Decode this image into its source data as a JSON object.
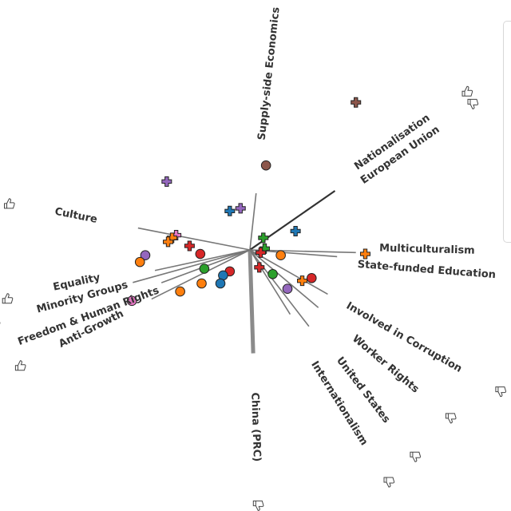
{
  "chart_data": {
    "type": "scatter",
    "title": "",
    "xlabel": "",
    "ylabel": "",
    "colors": {
      "red": "#d62728",
      "blue": "#1f77b4",
      "green": "#2ca02c",
      "orange": "#ff7f0e",
      "purple": "#9467bd",
      "brown": "#8c564b",
      "pink": "#e377c2",
      "axis_line": "#777777",
      "axis_strong": "#333333",
      "text": "#333333"
    },
    "axes": [
      {
        "label": "Supply-side Economics",
        "icon": "thumbs-down-icon",
        "direction": [
          0.07,
          -0.64
        ],
        "length": 0.66,
        "emphasis": "normal"
      },
      {
        "label": "Nationalisation",
        "icon": "thumbs-up-icon",
        "direction": [
          0.72,
          -0.5
        ],
        "length": 0.88,
        "emphasis": "strong"
      },
      {
        "label": "European Union",
        "icon": "thumbs-down-icon",
        "direction": [
          0.72,
          -0.5
        ],
        "length": 0.88,
        "emphasis": "strong"
      },
      {
        "label": "Multiculturalism",
        "icon": "thumbs-down-icon",
        "direction": [
          0.79,
          0.02
        ],
        "length": 1.0,
        "emphasis": "normal"
      },
      {
        "label": "State-funded Education",
        "icon": "thumbs-down-icon",
        "direction": [
          0.65,
          0.05
        ],
        "length": 1.0,
        "emphasis": "normal"
      },
      {
        "label": "Involved in Corruption",
        "icon": "thumbs-down-icon",
        "direction": [
          0.58,
          0.33
        ],
        "length": 1.0,
        "emphasis": "normal"
      },
      {
        "label": "Worker Rights",
        "icon": "thumbs-down-icon",
        "direction": [
          0.51,
          0.43
        ],
        "length": 1.0,
        "emphasis": "normal"
      },
      {
        "label": "United States",
        "icon": "thumbs-down-icon",
        "direction": [
          0.44,
          0.57
        ],
        "length": 1.0,
        "emphasis": "normal"
      },
      {
        "label": "Internationalism",
        "icon": "thumbs-down-icon",
        "direction": [
          0.3,
          0.48
        ],
        "length": 1.0,
        "emphasis": "normal"
      },
      {
        "label": "China (PRC)",
        "icon": "thumbs-down-icon",
        "direction": [
          0.03,
          0.94
        ],
        "length": 0.82,
        "emphasis": "heavy"
      },
      {
        "label": "Anti-Growth",
        "icon": "thumbs-up-icon",
        "direction": [
          -0.94,
          0.47
        ],
        "length": 0.78,
        "emphasis": "normal"
      },
      {
        "label": "Freedom & Human Rights",
        "icon": "thumbs-up-icon",
        "direction": [
          -0.97,
          0.36
        ],
        "length": 0.68,
        "emphasis": "normal"
      },
      {
        "label": "Minority Groups",
        "icon": "thumbs-up-icon",
        "direction": [
          -0.97,
          0.27
        ],
        "length": 0.9,
        "emphasis": "normal"
      },
      {
        "label": "Equality",
        "icon": "thumbs-up-icon",
        "direction": [
          -0.97,
          0.21
        ],
        "length": 0.73,
        "emphasis": "normal"
      },
      {
        "label": "Culture",
        "icon": "thumbs-up-icon",
        "direction": [
          -0.97,
          -0.19
        ],
        "length": 0.86,
        "emphasis": "normal"
      }
    ],
    "points": [
      {
        "x": 0.79,
        "y": -1.1,
        "color": "brown",
        "shape": "plus"
      },
      {
        "x": 0.12,
        "y": -0.63,
        "color": "brown",
        "shape": "circle"
      },
      {
        "x": -0.62,
        "y": -0.51,
        "color": "purple",
        "shape": "plus"
      },
      {
        "x": -0.15,
        "y": -0.29,
        "color": "blue",
        "shape": "plus"
      },
      {
        "x": -0.07,
        "y": -0.31,
        "color": "purple",
        "shape": "plus"
      },
      {
        "x": 0.34,
        "y": -0.14,
        "color": "blue",
        "shape": "plus"
      },
      {
        "x": -0.55,
        "y": -0.11,
        "color": "pink",
        "shape": "plus"
      },
      {
        "x": -0.58,
        "y": -0.09,
        "color": "orange",
        "shape": "plus"
      },
      {
        "x": -0.61,
        "y": -0.06,
        "color": "orange",
        "shape": "plus"
      },
      {
        "x": -0.45,
        "y": -0.03,
        "color": "red",
        "shape": "plus"
      },
      {
        "x": -0.37,
        "y": 0.03,
        "color": "red",
        "shape": "circle"
      },
      {
        "x": 0.1,
        "y": -0.09,
        "color": "green",
        "shape": "plus"
      },
      {
        "x": 0.11,
        "y": -0.01,
        "color": "green",
        "shape": "plus"
      },
      {
        "x": 0.08,
        "y": 0.02,
        "color": "red",
        "shape": "plus"
      },
      {
        "x": 0.23,
        "y": 0.04,
        "color": "orange",
        "shape": "circle"
      },
      {
        "x": 0.86,
        "y": 0.03,
        "color": "orange",
        "shape": "plus"
      },
      {
        "x": -0.78,
        "y": 0.04,
        "color": "purple",
        "shape": "circle"
      },
      {
        "x": -0.82,
        "y": 0.09,
        "color": "orange",
        "shape": "circle"
      },
      {
        "x": -0.34,
        "y": 0.14,
        "color": "green",
        "shape": "circle"
      },
      {
        "x": -0.15,
        "y": 0.16,
        "color": "red",
        "shape": "circle"
      },
      {
        "x": -0.2,
        "y": 0.19,
        "color": "blue",
        "shape": "circle"
      },
      {
        "x": 0.07,
        "y": 0.13,
        "color": "red",
        "shape": "plus"
      },
      {
        "x": 0.17,
        "y": 0.18,
        "color": "green",
        "shape": "circle"
      },
      {
        "x": 0.46,
        "y": 0.21,
        "color": "red",
        "shape": "circle"
      },
      {
        "x": 0.39,
        "y": 0.23,
        "color": "orange",
        "shape": "plus"
      },
      {
        "x": -0.36,
        "y": 0.25,
        "color": "orange",
        "shape": "circle"
      },
      {
        "x": -0.22,
        "y": 0.25,
        "color": "blue",
        "shape": "circle"
      },
      {
        "x": 0.28,
        "y": 0.29,
        "color": "purple",
        "shape": "circle"
      },
      {
        "x": -0.52,
        "y": 0.31,
        "color": "orange",
        "shape": "circle"
      },
      {
        "x": -0.88,
        "y": 0.38,
        "color": "pink",
        "shape": "circle"
      }
    ]
  }
}
